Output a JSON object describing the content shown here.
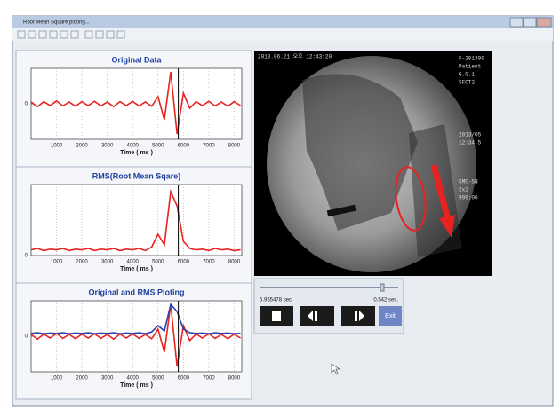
{
  "window": {
    "title": "Root Mean Square ploting..."
  },
  "plots": [
    {
      "title": "Original Data",
      "x_label": "Time ( ms )",
      "xlim": [
        0,
        8300
      ],
      "xticks": [
        1000,
        2000,
        3000,
        4000,
        5000,
        6000,
        7000,
        8000
      ],
      "ylim": [
        -1,
        1
      ],
      "yticks": [
        0
      ],
      "cursor": 5800,
      "x": [
        0,
        250,
        500,
        750,
        1000,
        1250,
        1500,
        1750,
        2000,
        2250,
        2500,
        2750,
        3000,
        3250,
        3500,
        3750,
        4000,
        4250,
        4500,
        4750,
        5000,
        5250,
        5500,
        5750,
        6000,
        6250,
        6500,
        6750,
        7000,
        7250,
        7500,
        7750,
        8000,
        8250
      ],
      "series": [
        {
          "color": "#e8231f",
          "values": [
            0.05,
            -0.08,
            0.06,
            -0.05,
            0.08,
            -0.06,
            0.05,
            -0.07,
            0.06,
            -0.05,
            0.07,
            -0.06,
            0.05,
            -0.08,
            0.06,
            -0.05,
            0.07,
            -0.06,
            0.05,
            -0.07,
            0.2,
            -0.45,
            0.9,
            -0.85,
            0.3,
            -0.12,
            0.06,
            -0.05,
            0.07,
            -0.06,
            0.05,
            -0.07,
            0.06,
            -0.05
          ]
        }
      ]
    },
    {
      "title": "RMS(Root Mean Sqare)",
      "x_label": "Time ( ms )",
      "xlim": [
        0,
        8300
      ],
      "xticks": [
        1000,
        2000,
        3000,
        4000,
        5000,
        6000,
        7000,
        8000
      ],
      "ylim": [
        0,
        1
      ],
      "yticks": [
        0
      ],
      "cursor": 5800,
      "x": [
        0,
        250,
        500,
        750,
        1000,
        1250,
        1500,
        1750,
        2000,
        2250,
        2500,
        2750,
        3000,
        3250,
        3500,
        3750,
        4000,
        4250,
        4500,
        4750,
        5000,
        5250,
        5500,
        5750,
        6000,
        6250,
        6500,
        6750,
        7000,
        7250,
        7500,
        7750,
        8000,
        8250
      ],
      "series": [
        {
          "color": "#e8231f",
          "values": [
            0.08,
            0.1,
            0.07,
            0.09,
            0.08,
            0.1,
            0.07,
            0.09,
            0.08,
            0.1,
            0.07,
            0.09,
            0.08,
            0.1,
            0.07,
            0.09,
            0.08,
            0.1,
            0.07,
            0.12,
            0.3,
            0.15,
            0.9,
            0.7,
            0.2,
            0.1,
            0.08,
            0.09,
            0.07,
            0.1,
            0.08,
            0.09,
            0.07,
            0.08
          ]
        }
      ]
    },
    {
      "title": "Original and RMS Ploting",
      "x_label": "Time ( ms )",
      "xlim": [
        0,
        8300
      ],
      "xticks": [
        1000,
        2000,
        3000,
        4000,
        5000,
        6000,
        7000,
        8000
      ],
      "ylim": [
        -1,
        1
      ],
      "yticks": [
        0
      ],
      "cursor": 5800,
      "x": [
        0,
        250,
        500,
        750,
        1000,
        1250,
        1500,
        1750,
        2000,
        2250,
        2500,
        2750,
        3000,
        3250,
        3500,
        3750,
        4000,
        4250,
        4500,
        4750,
        5000,
        5250,
        5500,
        5750,
        6000,
        6250,
        6500,
        6750,
        7000,
        7250,
        7500,
        7750,
        8000,
        8250
      ],
      "series": [
        {
          "color": "#e8231f",
          "values": [
            0.05,
            -0.08,
            0.06,
            -0.05,
            0.08,
            -0.06,
            0.05,
            -0.07,
            0.06,
            -0.05,
            0.07,
            -0.06,
            0.05,
            -0.08,
            0.06,
            -0.05,
            0.07,
            -0.06,
            0.05,
            -0.07,
            0.2,
            -0.45,
            0.9,
            -0.85,
            0.3,
            -0.12,
            0.06,
            -0.05,
            0.07,
            -0.06,
            0.05,
            -0.07,
            0.06,
            -0.05
          ]
        },
        {
          "color": "#2b3fb0",
          "values": [
            0.08,
            0.1,
            0.07,
            0.09,
            0.08,
            0.1,
            0.07,
            0.09,
            0.08,
            0.1,
            0.07,
            0.09,
            0.08,
            0.1,
            0.07,
            0.09,
            0.08,
            0.1,
            0.07,
            0.12,
            0.3,
            0.15,
            0.9,
            0.7,
            0.2,
            0.1,
            0.08,
            0.09,
            0.07,
            0.1,
            0.08,
            0.09,
            0.07,
            0.08
          ]
        }
      ]
    }
  ],
  "video": {
    "timestamp": "2013.06.21 오후 12:43:20",
    "side_info": [
      "F-201300",
      "Patient",
      "G.G.1",
      "SFCT2",
      "2013/05",
      "12:34.5",
      "SMC-SN",
      "2x2",
      "999:00"
    ]
  },
  "controls": {
    "current_time": "5.955478 sec",
    "duration": "0.542 sec.",
    "exit": "Exit"
  }
}
